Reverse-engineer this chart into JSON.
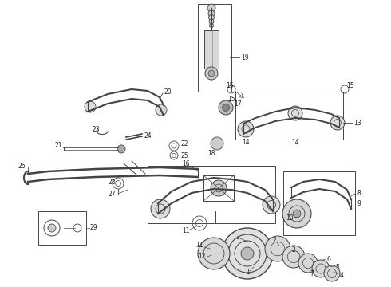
{
  "bg_color": "#ffffff",
  "lc": "#444444",
  "fig_width": 4.9,
  "fig_height": 3.6,
  "dpi": 100
}
